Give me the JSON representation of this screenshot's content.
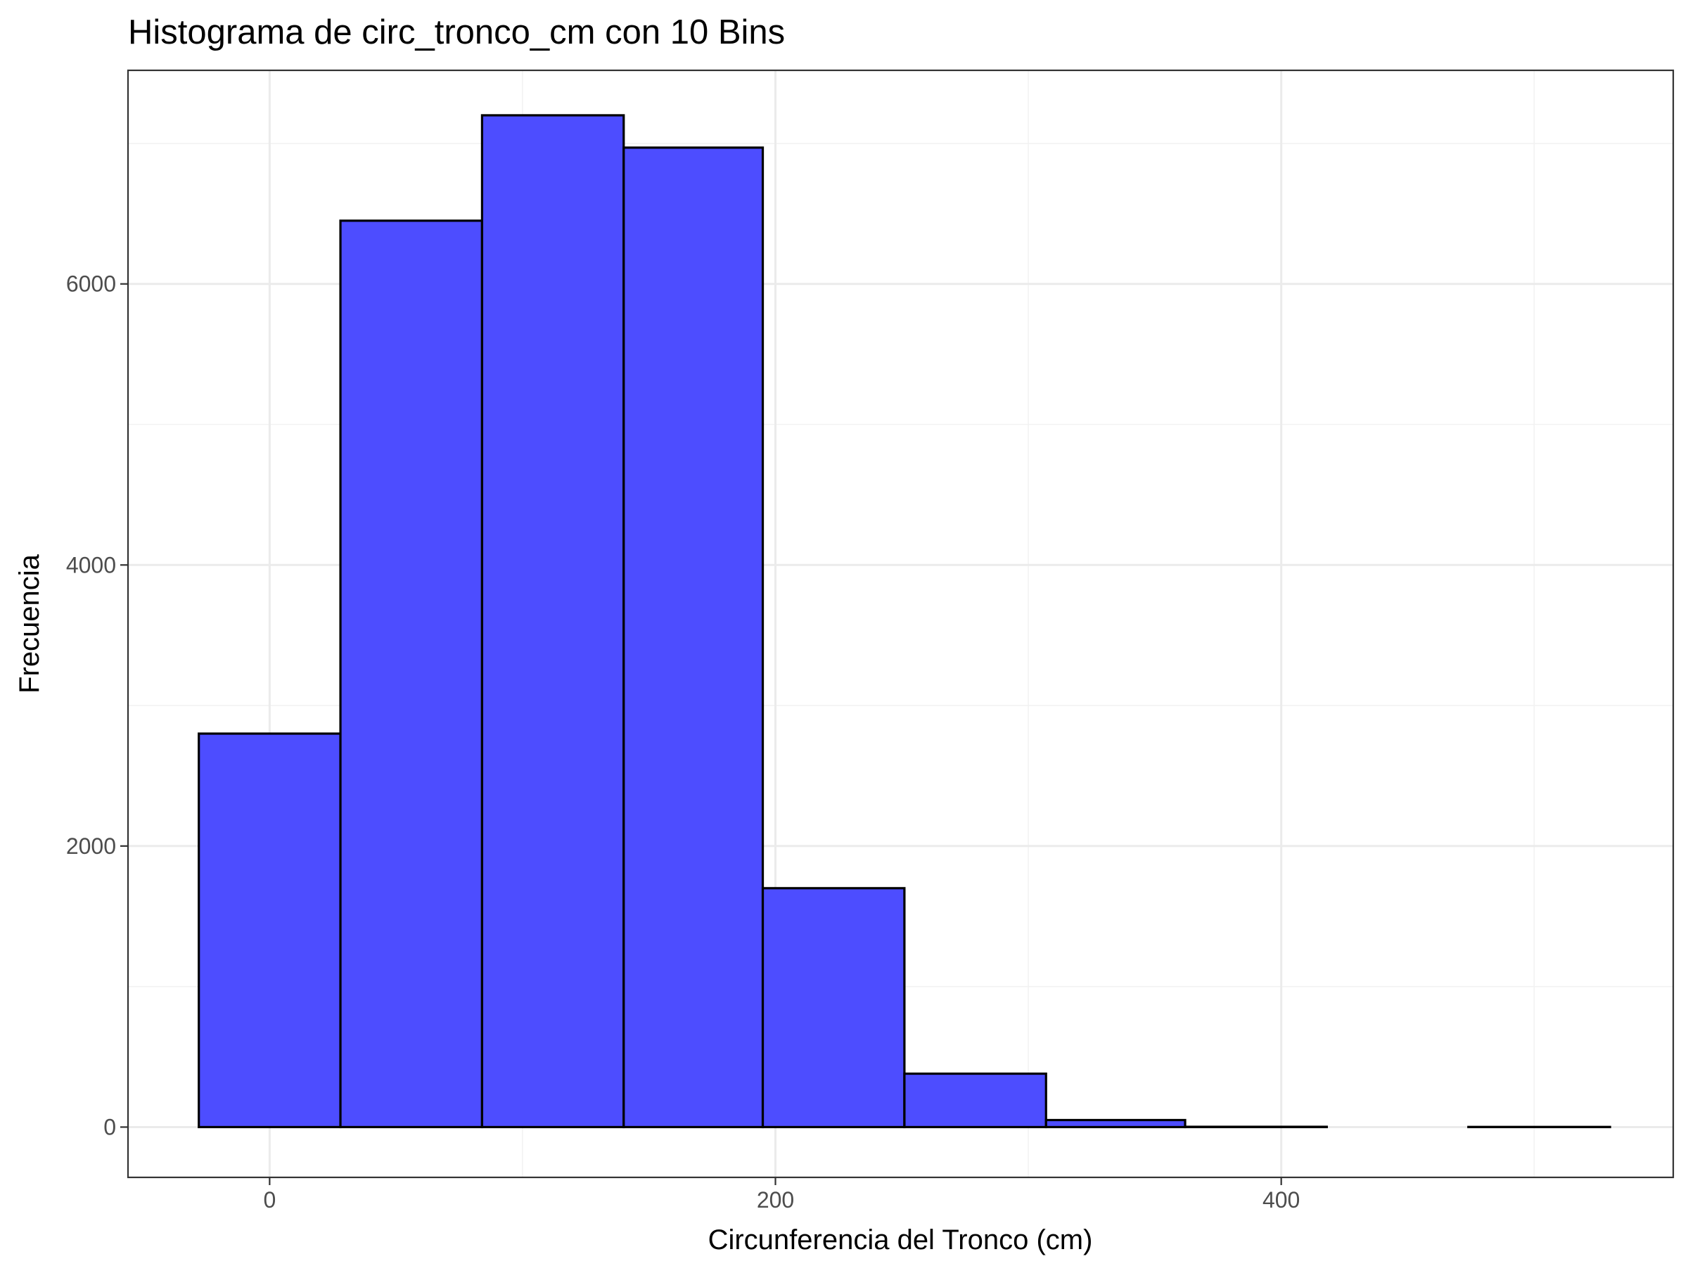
{
  "chart_data": {
    "type": "histogram",
    "title": "Histograma de circ_tronco_cm con 10 Bins",
    "xlabel": "Circunferencia del Tronco (cm)",
    "ylabel": "Frecuencia",
    "xlim": [
      -56,
      555
    ],
    "ylim": [
      -358,
      7520
    ],
    "x_ticks": [
      0,
      200,
      400
    ],
    "x_tick_labels": [
      "0",
      "200",
      "400"
    ],
    "y_ticks": [
      0,
      2000,
      4000,
      6000
    ],
    "y_tick_labels": [
      "0",
      "2000",
      "4000",
      "6000"
    ],
    "bins": [
      {
        "x_start": -28,
        "x_end": 28,
        "count": 2800
      },
      {
        "x_start": 28,
        "x_end": 84,
        "count": 6450
      },
      {
        "x_start": 84,
        "x_end": 140,
        "count": 7200
      },
      {
        "x_start": 140,
        "x_end": 195,
        "count": 6970
      },
      {
        "x_start": 195,
        "x_end": 251,
        "count": 1700
      },
      {
        "x_start": 251,
        "x_end": 307,
        "count": 380
      },
      {
        "x_start": 307,
        "x_end": 362,
        "count": 50
      },
      {
        "x_start": 362,
        "x_end": 418,
        "count": 2
      },
      {
        "x_start": 418,
        "x_end": 474,
        "count": 0
      },
      {
        "x_start": 474,
        "x_end": 530,
        "count": 1
      }
    ],
    "bar_fill": "#4d4dff",
    "bar_outline": "#000000",
    "grid": true,
    "theme": "bw",
    "legend": "none"
  }
}
